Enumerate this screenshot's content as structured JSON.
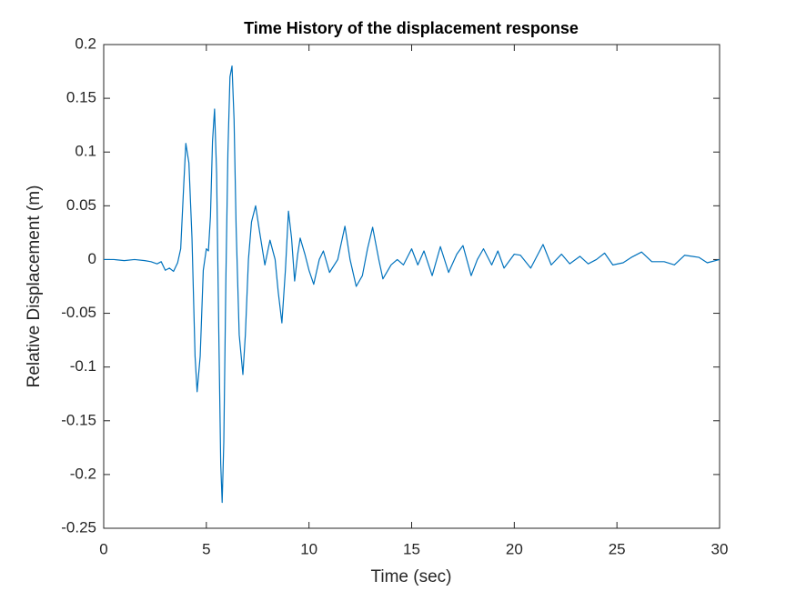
{
  "chart_data": {
    "type": "line",
    "title": "Time History of the displacement response",
    "xlabel": "Time (sec)",
    "ylabel": "Relative Displacement (m)",
    "color": "#0072bd",
    "x": [
      0,
      0.5,
      1,
      1.5,
      2,
      2.3,
      2.6,
      2.8,
      3.0,
      3.2,
      3.4,
      3.6,
      3.75,
      3.9,
      4.0,
      4.15,
      4.3,
      4.45,
      4.55,
      4.7,
      4.85,
      5.0,
      5.1,
      5.2,
      5.3,
      5.4,
      5.5,
      5.6,
      5.7,
      5.77,
      5.85,
      5.95,
      6.05,
      6.15,
      6.25,
      6.35,
      6.45,
      6.6,
      6.78,
      6.9,
      7.05,
      7.2,
      7.4,
      7.6,
      7.85,
      8.1,
      8.35,
      8.5,
      8.68,
      8.85,
      9.0,
      9.15,
      9.3,
      9.45,
      9.57,
      9.8,
      10.0,
      10.23,
      10.5,
      10.7,
      11.0,
      11.4,
      11.75,
      12.0,
      12.3,
      12.6,
      12.85,
      13.1,
      13.4,
      13.6,
      14.0,
      14.3,
      14.6,
      15.0,
      15.3,
      15.6,
      16.0,
      16.4,
      16.8,
      17.2,
      17.5,
      17.9,
      18.2,
      18.5,
      18.9,
      19.2,
      19.5,
      20.0,
      20.3,
      20.8,
      21.4,
      21.8,
      22.3,
      22.7,
      23.2,
      23.6,
      24.0,
      24.4,
      24.8,
      25.3,
      25.7,
      26.2,
      26.7,
      27.3,
      27.8,
      28.3,
      29.0,
      29.4,
      30
    ],
    "values": [
      0,
      0,
      -0.001,
      0,
      -0.001,
      -0.002,
      -0.004,
      -0.002,
      -0.01,
      -0.008,
      -0.011,
      -0.003,
      0.01,
      0.07,
      0.108,
      0.09,
      0.02,
      -0.09,
      -0.123,
      -0.09,
      -0.01,
      0.01,
      0.008,
      0.04,
      0.11,
      0.14,
      0.08,
      -0.06,
      -0.19,
      -0.226,
      -0.17,
      -0.02,
      0.1,
      0.17,
      0.18,
      0.13,
      0.03,
      -0.07,
      -0.107,
      -0.07,
      0.0,
      0.035,
      0.05,
      0.025,
      -0.005,
      0.018,
      0.0,
      -0.03,
      -0.059,
      -0.01,
      0.045,
      0.02,
      -0.02,
      0.005,
      0.02,
      0.005,
      -0.01,
      -0.023,
      0.0,
      0.008,
      -0.012,
      0.0,
      0.031,
      0.0,
      -0.025,
      -0.015,
      0.01,
      0.03,
      0.0,
      -0.018,
      -0.005,
      0.0,
      -0.005,
      0.01,
      -0.005,
      0.008,
      -0.015,
      0.012,
      -0.012,
      0.005,
      0.013,
      -0.015,
      0.0,
      0.01,
      -0.005,
      0.008,
      -0.008,
      0.005,
      0.004,
      -0.008,
      0.014,
      -0.005,
      0.005,
      -0.004,
      0.003,
      -0.004,
      0.0,
      0.006,
      -0.005,
      -0.003,
      0.002,
      0.007,
      -0.002,
      -0.002,
      -0.005,
      0.004,
      0.002,
      -0.003,
      0.0
    ],
    "xlim": [
      0,
      30
    ],
    "xticks": [
      0,
      5,
      10,
      15,
      20,
      25,
      30
    ],
    "ylim": [
      -0.25,
      0.2
    ],
    "yticks": [
      -0.25,
      -0.2,
      -0.15,
      -0.1,
      -0.05,
      0,
      0.05,
      0.1,
      0.15,
      0.2
    ],
    "grid": false
  }
}
